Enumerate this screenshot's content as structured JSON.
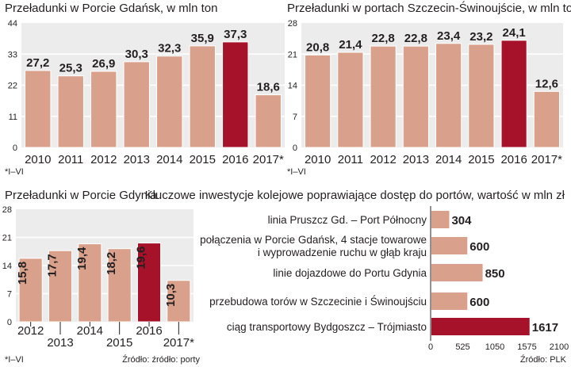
{
  "colors": {
    "panel": "#ececec",
    "bar": "#d9a08c",
    "bar_stroke": "#ffffff",
    "highlight": "#a5122a",
    "text": "#231f20",
    "grid": "#ffffff"
  },
  "chart_data": [
    {
      "id": "gdansk",
      "type": "bar",
      "title": "Przeładunki w Porcie Gdańsk, w mln ton",
      "categories": [
        "2010",
        "2011",
        "2012",
        "2013",
        "2014",
        "2015",
        "2016",
        "2017*"
      ],
      "values": [
        27.2,
        25.3,
        26.9,
        30.3,
        32.3,
        35.9,
        37.3,
        18.6
      ],
      "labels": [
        "27,2",
        "25,3",
        "26,9",
        "30,3",
        "32,3",
        "35,9",
        "37,3",
        "18,6"
      ],
      "highlight_index": 6,
      "ylim": [
        0,
        44
      ],
      "yticks": [
        "0",
        "11",
        "22",
        "33",
        "44"
      ],
      "grid": true,
      "footnote": "*I–VI"
    },
    {
      "id": "szczecin",
      "type": "bar",
      "title": "Przeładunki w portach Szczecin-Świnoujście, w mln ton",
      "categories": [
        "2010",
        "2011",
        "2012",
        "2013",
        "2014",
        "2015",
        "2016",
        "2017*"
      ],
      "values": [
        20.8,
        21.4,
        22.8,
        22.8,
        23.4,
        23.2,
        24.1,
        12.6
      ],
      "labels": [
        "20,8",
        "21,4",
        "22,8",
        "22,8",
        "23,4",
        "23,2",
        "24,1",
        "12,6"
      ],
      "highlight_index": 6,
      "ylim": [
        0,
        28
      ],
      "yticks": [
        "0",
        "7",
        "14",
        "21",
        "28"
      ],
      "grid": true,
      "footnote": "*I–VI"
    },
    {
      "id": "gdynia",
      "type": "bar",
      "title": "Przeładunki w Porcie Gdynia",
      "categories": [
        "2012",
        "2013",
        "2014",
        "2015",
        "2016",
        "2017*"
      ],
      "values": [
        15.8,
        17.7,
        19.4,
        18.2,
        19.6,
        10.3
      ],
      "labels": [
        "15,8",
        "17,7",
        "19,4",
        "18,2",
        "19,6",
        "10,3"
      ],
      "highlight_index": 4,
      "ylim": [
        0,
        28
      ],
      "yticks": [
        "0",
        "7",
        "14",
        "21",
        "28"
      ],
      "grid": true,
      "footnote": "*I–VI",
      "source": "Źródło: źródło: porty"
    },
    {
      "id": "investments",
      "type": "bar",
      "orientation": "horizontal",
      "title": "Kluczowe inwestycje  kolejowe poprawiające dostęp do portów, wartość w mln zł",
      "categories": [
        [
          "linia Pruszcz Gd. – Port Północny"
        ],
        [
          "połączenia w Porcie Gdańsk, 4 stacje towarowe",
          "i wyprowadzenie ruchu w głąb kraju"
        ],
        [
          "linie dojazdowe do Portu Gdynia"
        ],
        [
          "przebudowa torów w Szczecinie i Świnoujściu"
        ],
        [
          "ciąg transportowy Bydgoszcz – Trójmiasto"
        ]
      ],
      "values": [
        304,
        600,
        850,
        600,
        1617
      ],
      "labels": [
        "304",
        "600",
        "850",
        "600",
        "1617"
      ],
      "highlight_index": 4,
      "xlim": [
        0,
        2100
      ],
      "xticks": [
        "0",
        "525",
        "1050",
        "1575",
        "2100"
      ],
      "grid": false,
      "source": "Źródło: PLK"
    }
  ]
}
